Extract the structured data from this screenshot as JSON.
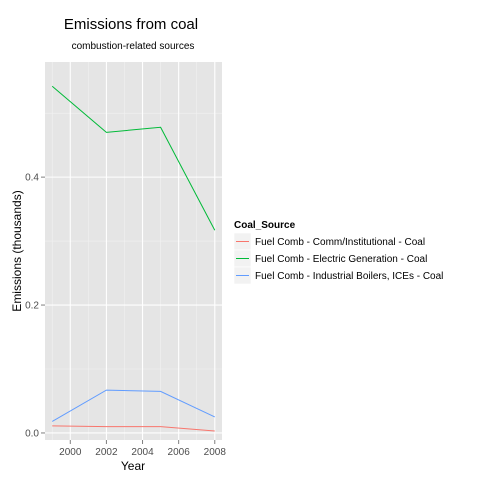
{
  "chart_data": {
    "type": "line",
    "title": "Emissions from coal",
    "subtitle": "combustion-related sources",
    "xlabel": "Year",
    "ylabel": "Emissions (thousands)",
    "x": [
      1999,
      2002,
      2005,
      2008
    ],
    "xticks": [
      "2000",
      "2002",
      "2004",
      "2006",
      "2008"
    ],
    "yticks": [
      "0.0",
      "0.2",
      "0.4"
    ],
    "xlim": [
      1998.6,
      2008.4
    ],
    "ylim": [
      -0.011,
      0.58
    ],
    "grid": true,
    "legend": {
      "title": "Coal_Source",
      "position": "right"
    },
    "series": [
      {
        "name": "Fuel Comb - Comm/Institutional - Coal",
        "color": "#F8766D",
        "values": [
          0.011,
          0.01,
          0.01,
          0.003
        ]
      },
      {
        "name": "Fuel Comb - Electric Generation - Coal",
        "color": "#00BA38",
        "values": [
          0.542,
          0.47,
          0.478,
          0.317
        ]
      },
      {
        "name": "Fuel Comb - Industrial Boilers, ICEs - Coal",
        "color": "#619CFF",
        "values": [
          0.018,
          0.067,
          0.065,
          0.025
        ]
      }
    ],
    "panel_color": "#E5E5E5",
    "grid_color": "#FFFFFF"
  }
}
